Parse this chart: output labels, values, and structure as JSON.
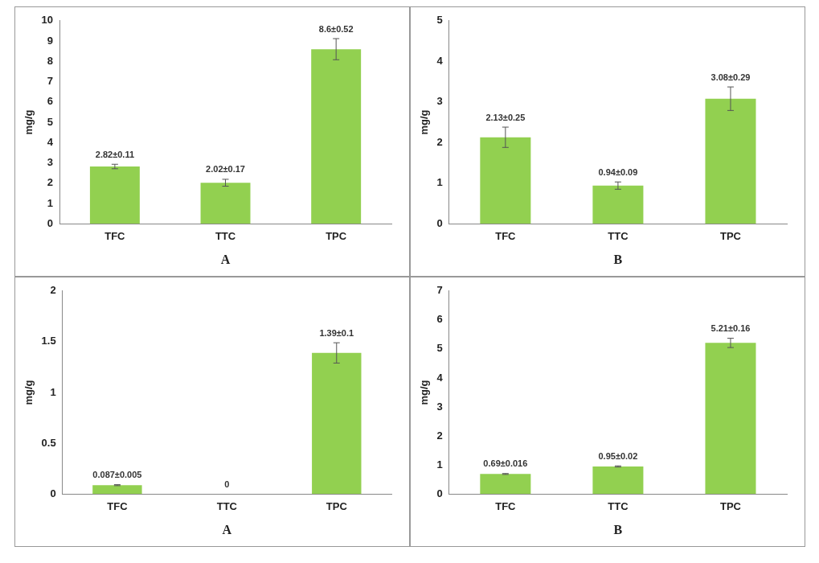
{
  "chart_data": [
    {
      "type": "bar",
      "categories": [
        "TFC",
        "TTC",
        "TPC"
      ],
      "values": [
        2.82,
        2.02,
        8.6
      ],
      "errors": [
        0.11,
        0.17,
        0.52
      ],
      "value_labels": [
        "2.82±0.11",
        "2.02±0.17",
        "8.6±0.52"
      ],
      "color": "#92d050",
      "ylabel": "mg/g",
      "xlabel": "A",
      "ylim": [
        0,
        10
      ],
      "yticks": [
        0,
        1,
        2,
        3,
        4,
        5,
        6,
        7,
        8,
        9,
        10
      ]
    },
    {
      "type": "bar",
      "categories": [
        "TFC",
        "TTC",
        "TPC"
      ],
      "values": [
        2.13,
        0.94,
        3.08
      ],
      "errors": [
        0.25,
        0.09,
        0.29
      ],
      "value_labels": [
        "2.13±0.25",
        "0.94±0.09",
        "3.08±0.29"
      ],
      "color": "#92d050",
      "ylabel": "mg/g",
      "xlabel": "B",
      "ylim": [
        0,
        5
      ],
      "yticks": [
        0,
        1,
        2,
        3,
        4,
        5
      ]
    },
    {
      "type": "bar",
      "categories": [
        "TFC",
        "TTC",
        "TPC"
      ],
      "values": [
        0.087,
        0,
        1.39
      ],
      "errors": [
        0.005,
        null,
        0.1
      ],
      "value_labels": [
        "0.087±0.005",
        "0",
        "1.39±0.1"
      ],
      "color": "#92d050",
      "ylabel": "mg/g",
      "xlabel": "A",
      "ylim": [
        0,
        2
      ],
      "yticks": [
        0,
        0.5,
        1,
        1.5,
        2
      ]
    },
    {
      "type": "bar",
      "categories": [
        "TFC",
        "TTC",
        "TPC"
      ],
      "values": [
        0.69,
        0.95,
        5.21
      ],
      "errors": [
        0.016,
        0.02,
        0.16
      ],
      "value_labels": [
        "0.69±0.016",
        "0.95±0.02",
        "5.21±0.16"
      ],
      "color": "#92d050",
      "ylabel": "mg/g",
      "xlabel": "B",
      "ylim": [
        0,
        7
      ],
      "yticks": [
        0,
        1,
        2,
        3,
        4,
        5,
        6,
        7
      ]
    }
  ]
}
